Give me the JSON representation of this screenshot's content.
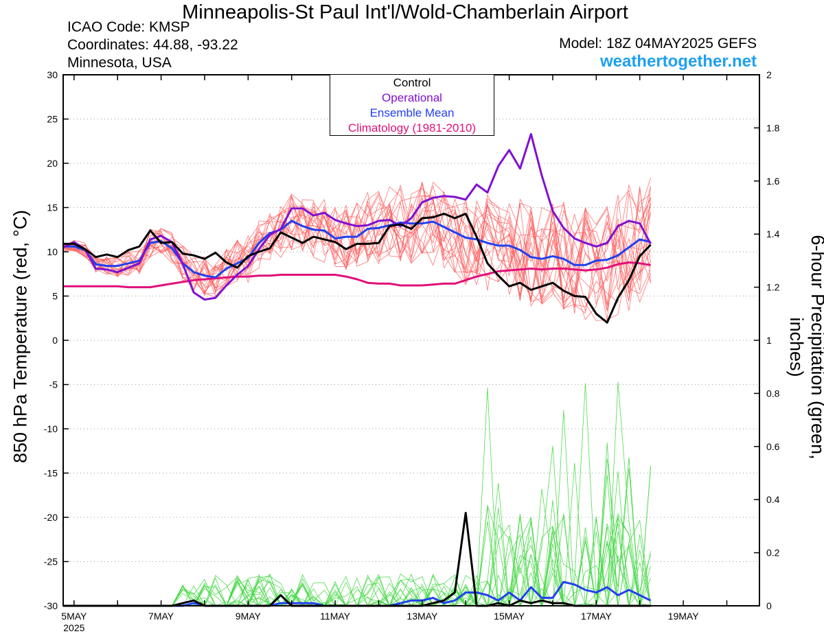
{
  "header": {
    "title": "Minneapolis-St Paul Int'l/Wold-Chamberlain Airport",
    "icao": "ICAO Code: KMSP",
    "coordinates": "Coordinates: 44.88, -93.22",
    "state": "Minnesota, USA",
    "model": "Model: 18Z 04MAY2025 GEFS",
    "site": "weathertogether.net"
  },
  "colors": {
    "control": "#000000",
    "operational": "#8010d0",
    "ensemble_mean": "#2040f0",
    "climatology": "#e0107a",
    "members_temp": "#ff5a5a",
    "members_precip": "#3ed63e",
    "site": "#1ea0f0"
  },
  "chart_data": {
    "type": "line",
    "xlabel": "",
    "ylabel_left": "850 hPa Temperature (red, °C)",
    "ylabel_right": "6-hour Precipitation (green, inches)",
    "x_start": "2025-05-04 18Z",
    "x_step_hours": 6,
    "x_range_days": [
      4.75,
      20.75
    ],
    "xtick_labels": [
      "5MAY",
      "7MAY",
      "9MAY",
      "11MAY",
      "13MAY",
      "15MAY",
      "17MAY",
      "19MAY"
    ],
    "xtick_days": [
      5,
      7,
      9,
      11,
      13,
      15,
      17,
      19
    ],
    "year_label": "2025",
    "ylim_left": [
      -30,
      30
    ],
    "yticks_left": [
      30,
      25,
      20,
      15,
      10,
      5,
      0,
      -5,
      -10,
      -15,
      -20,
      -25,
      -30
    ],
    "ylim_right": [
      0,
      2
    ],
    "yticks_right": [
      "2",
      "1.8",
      "1.6",
      "1.4",
      "1.2",
      "1",
      "0.8",
      "0.6",
      "0.4",
      "0.2",
      "0"
    ],
    "grid": true,
    "legend": {
      "placement": "top-center",
      "entries": [
        "Control",
        "Operational",
        "Ensemble Mean",
        "Climatology (1981-2010)"
      ]
    },
    "series": [
      {
        "name": "Operational",
        "axis": "left",
        "values": [
          10.5,
          11.1,
          10.3,
          8.1,
          8.0,
          7.7,
          8.2,
          8.7,
          11.4,
          11.8,
          11.1,
          8.6,
          5.4,
          4.6,
          4.8,
          6.2,
          7.4,
          8.4,
          10.3,
          11.9,
          12.6,
          14.9,
          14.9,
          14.1,
          14.4,
          13.6,
          13.2,
          12.9,
          13.0,
          13.5,
          13.6,
          12.9,
          13.8,
          15.6,
          16.1,
          16.3,
          16.2,
          15.9,
          17.6,
          16.7,
          19.7,
          21.5,
          19.4,
          23.3,
          18.6,
          14.6,
          12.7,
          11.5,
          11.0,
          10.6,
          11.0,
          12.9,
          13.5,
          13.2,
          10.9
        ]
      },
      {
        "name": "Ensemble Mean",
        "axis": "left",
        "values": [
          10.6,
          10.6,
          10.2,
          8.6,
          8.4,
          8.4,
          8.7,
          9.0,
          11.0,
          11.2,
          10.4,
          8.7,
          7.7,
          7.3,
          7.1,
          8.1,
          8.7,
          9.3,
          11.0,
          12.1,
          12.5,
          13.5,
          12.9,
          12.5,
          12.4,
          11.5,
          11.7,
          11.7,
          12.6,
          12.7,
          13.0,
          13.3,
          13.2,
          13.2,
          13.4,
          12.8,
          12.2,
          11.6,
          11.4,
          11.0,
          10.7,
          10.7,
          10.2,
          9.4,
          9.2,
          9.5,
          9.2,
          8.5,
          8.5,
          9.0,
          9.1,
          9.6,
          10.5,
          11.4,
          11.1
        ]
      },
      {
        "name": "Control",
        "axis": "left",
        "values": [
          10.9,
          10.9,
          10.3,
          9.4,
          9.7,
          9.4,
          10.2,
          10.6,
          12.4,
          11.0,
          11.1,
          9.8,
          9.6,
          9.2,
          9.9,
          8.8,
          8.2,
          9.5,
          10.0,
          10.4,
          12.2,
          11.6,
          11.0,
          11.7,
          11.4,
          11.1,
          10.3,
          10.9,
          10.9,
          11.0,
          12.9,
          13.1,
          12.6,
          13.8,
          13.9,
          14.3,
          13.8,
          14.3,
          11.7,
          8.7,
          7.3,
          6.1,
          6.5,
          5.7,
          6.1,
          6.5,
          5.6,
          5.0,
          4.9,
          3.0,
          2.0,
          4.8,
          6.8,
          9.5,
          10.8
        ]
      },
      {
        "name": "Climatology (1981-2010)",
        "axis": "left",
        "values": [
          6.1,
          6.1,
          6.1,
          6.1,
          6.1,
          6.1,
          6.0,
          6.0,
          6.0,
          6.2,
          6.4,
          6.6,
          6.8,
          6.9,
          7.0,
          7.1,
          7.2,
          7.2,
          7.3,
          7.3,
          7.4,
          7.4,
          7.4,
          7.4,
          7.4,
          7.4,
          7.2,
          6.9,
          6.5,
          6.4,
          6.4,
          6.2,
          6.2,
          6.2,
          6.3,
          6.4,
          6.4,
          6.8,
          7.2,
          7.5,
          7.8,
          7.9,
          8.0,
          8.1,
          8.0,
          8.1,
          8.1,
          8.0,
          7.9,
          8.0,
          8.2,
          8.6,
          8.8,
          8.7,
          8.5
        ]
      },
      {
        "name": "Control",
        "axis": "right",
        "values": [
          0,
          0,
          0,
          0,
          0,
          0,
          0,
          0,
          0,
          0,
          0,
          0.01,
          0.02,
          0,
          0,
          0,
          0,
          0,
          0,
          0,
          0.04,
          0,
          0,
          0,
          0,
          0,
          0,
          0,
          0,
          0,
          0,
          0,
          0,
          0,
          0.01,
          0.02,
          0.05,
          0.35,
          0,
          0,
          0.01,
          0,
          0.02,
          0.01,
          0.02,
          0.01,
          0.01,
          0,
          0,
          0,
          0,
          0,
          0,
          0,
          0
        ]
      },
      {
        "name": "Ensemble Mean",
        "axis": "right",
        "values": [
          0,
          0,
          0,
          0,
          0,
          0,
          0,
          0,
          0,
          0,
          0,
          0,
          0.01,
          0,
          0,
          0,
          0,
          0,
          0,
          0,
          0.01,
          0.01,
          0.01,
          0.01,
          0,
          0,
          0,
          0,
          0,
          0,
          0,
          0.01,
          0.02,
          0.02,
          0.03,
          0.01,
          0.02,
          0.05,
          0.05,
          0.04,
          0.02,
          0.05,
          0.02,
          0.07,
          0.03,
          0.03,
          0.09,
          0.08,
          0.06,
          0.05,
          0.07,
          0.04,
          0.06,
          0.04,
          0.02
        ]
      }
    ]
  }
}
